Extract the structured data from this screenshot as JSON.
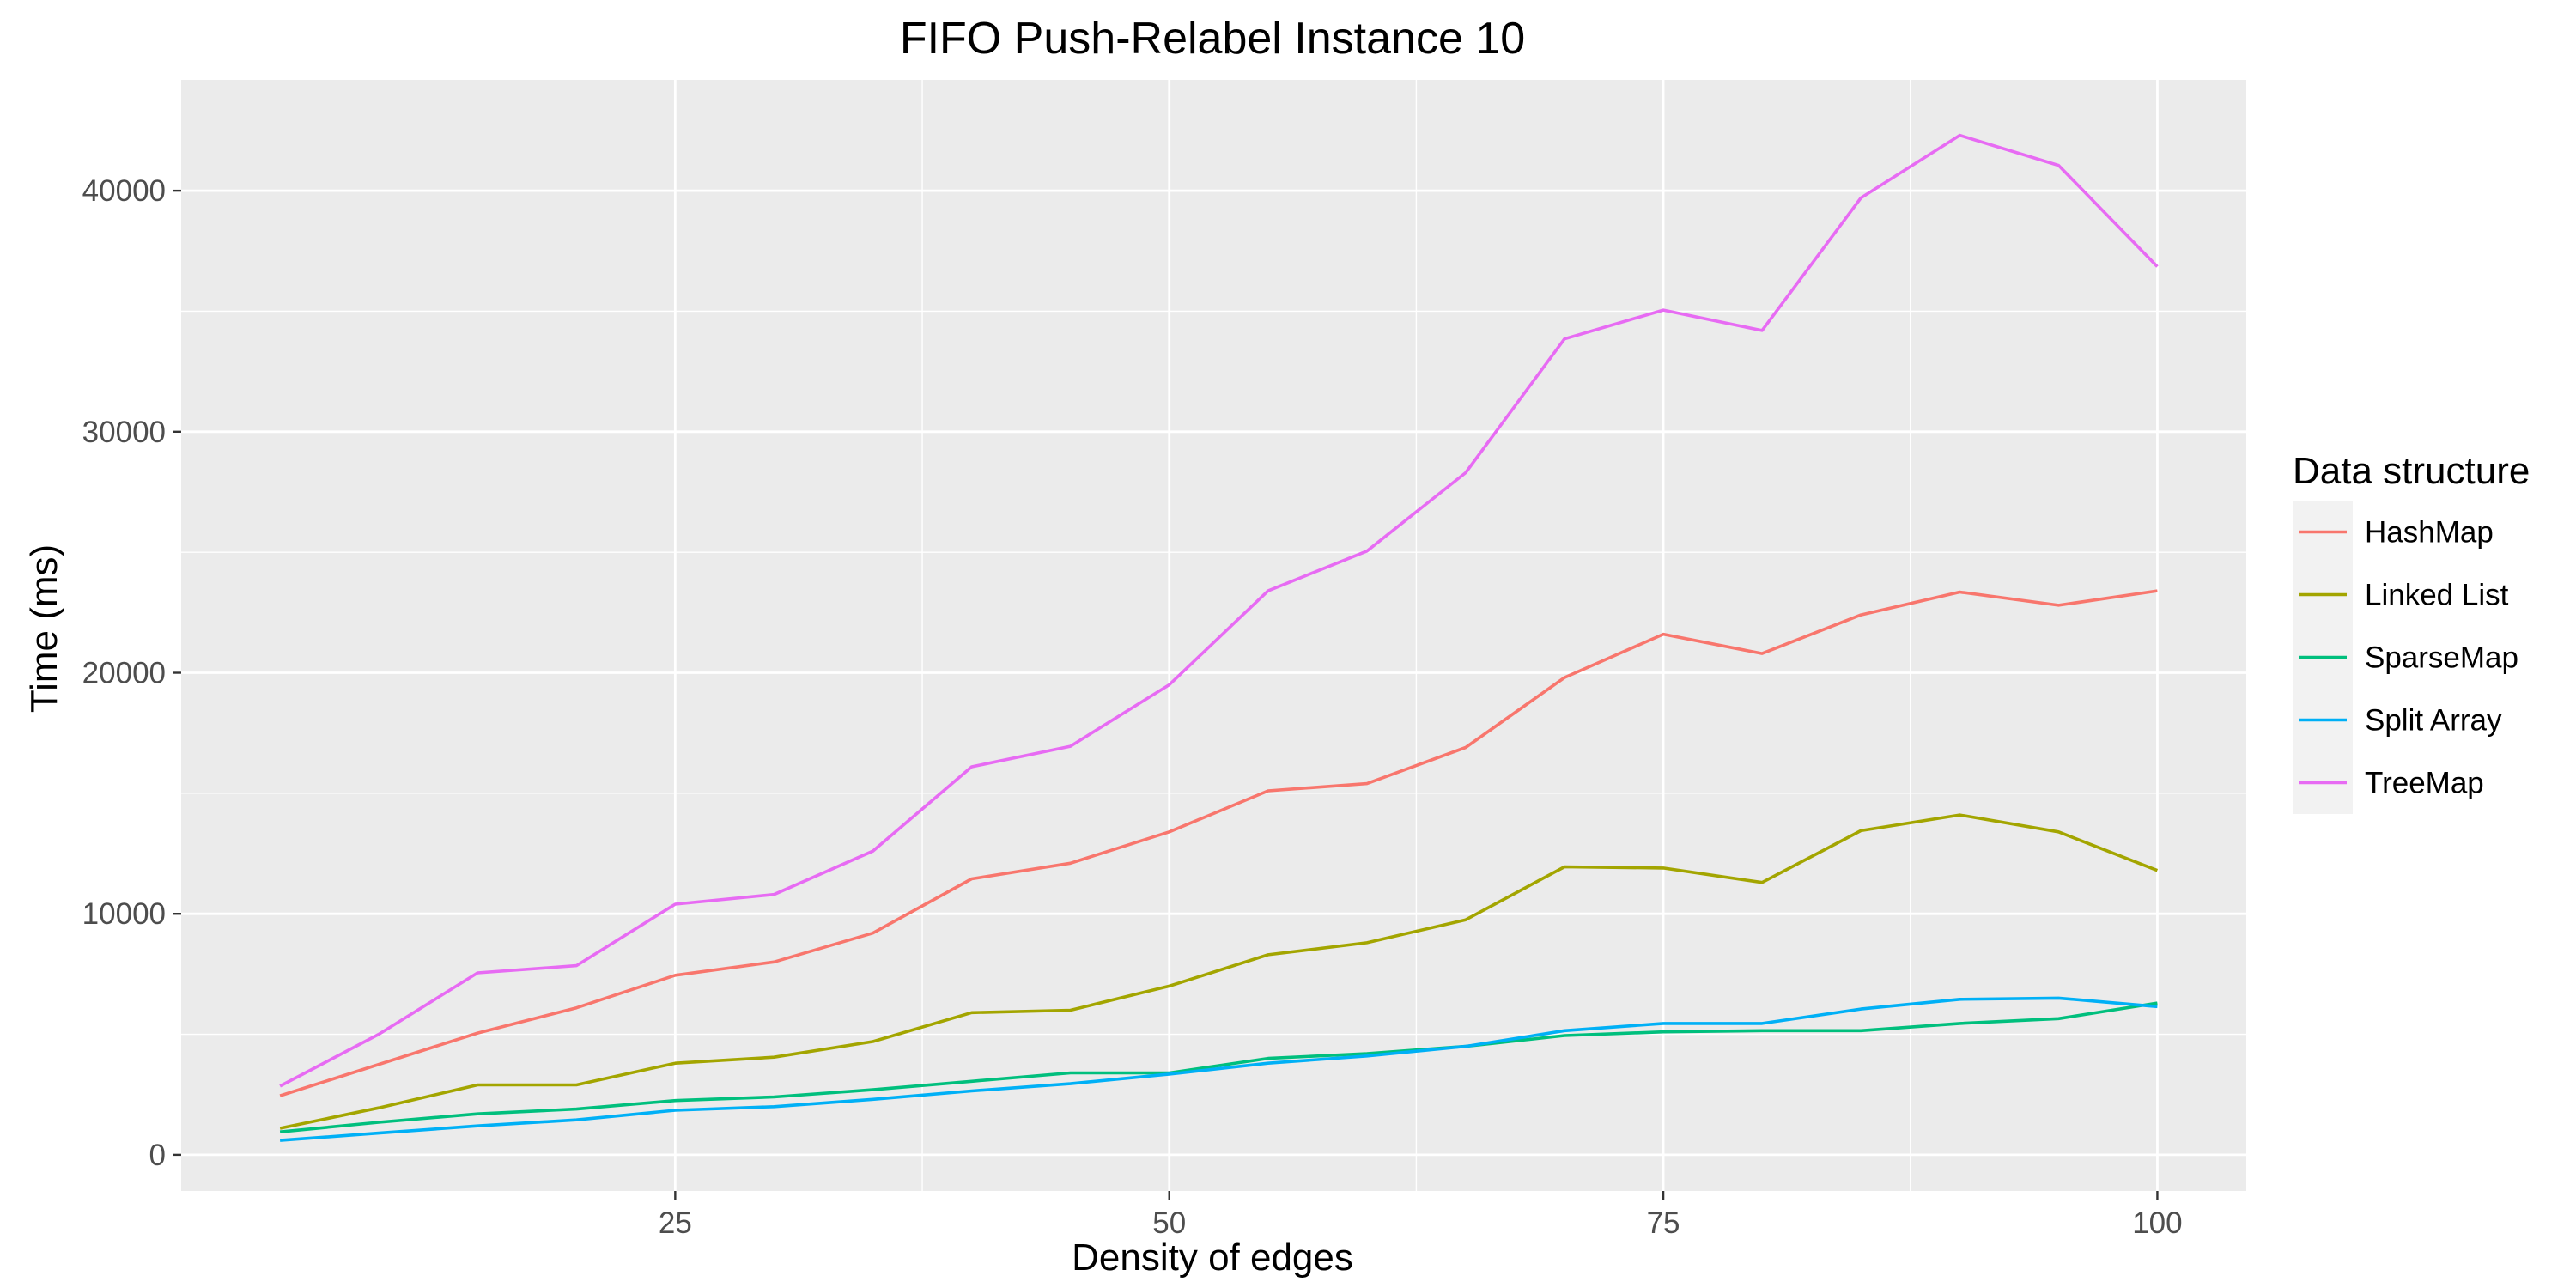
{
  "chart_data": {
    "type": "line",
    "title": "FIFO Push-Relabel Instance 10",
    "xlabel": "Density of edges",
    "ylabel": "Time (ms)",
    "xlim": [
      0,
      104.5
    ],
    "ylim": [
      -1500,
      44600
    ],
    "x_ticks": [
      25,
      50,
      75,
      100
    ],
    "x_tick_labels": [
      "25",
      "50",
      "75",
      "100"
    ],
    "y_ticks": [
      0,
      10000,
      20000,
      30000,
      40000
    ],
    "y_tick_labels": [
      "0",
      "10000",
      "20000",
      "30000",
      "40000"
    ],
    "grid": true,
    "background": "#ebebeb",
    "legend": {
      "title": "Data structure",
      "position": "right"
    },
    "x": [
      5,
      10,
      15,
      20,
      25,
      30,
      35,
      40,
      45,
      50,
      55,
      60,
      65,
      70,
      75,
      80,
      85,
      90,
      95,
      100
    ],
    "series": [
      {
        "name": "HashMap",
        "color": "#f8766d",
        "values": [
          2450,
          3750,
          5050,
          6100,
          7450,
          8000,
          9200,
          11450,
          12100,
          13400,
          15100,
          15400,
          16900,
          19800,
          21600,
          20800,
          22400,
          23350,
          22800,
          23400
        ]
      },
      {
        "name": "Linked List",
        "color": "#a3a500",
        "values": [
          1100,
          1950,
          2900,
          2900,
          3800,
          4050,
          4700,
          5900,
          6000,
          7000,
          8300,
          8800,
          9750,
          11950,
          11900,
          11300,
          13450,
          14100,
          13400,
          11800
        ]
      },
      {
        "name": "SparseMap",
        "color": "#00bf7d",
        "values": [
          950,
          1350,
          1700,
          1900,
          2250,
          2400,
          2700,
          3050,
          3400,
          3400,
          4000,
          4200,
          4500,
          4950,
          5100,
          5150,
          5150,
          5450,
          5650,
          6300
        ]
      },
      {
        "name": "Split Array",
        "color": "#00b0f6",
        "values": [
          600,
          900,
          1200,
          1450,
          1850,
          2000,
          2300,
          2650,
          2950,
          3350,
          3800,
          4100,
          4500,
          5150,
          5450,
          5450,
          6050,
          6450,
          6500,
          6150
        ]
      },
      {
        "name": "TreeMap",
        "color": "#e76bf3",
        "values": [
          2850,
          5000,
          7550,
          7850,
          10400,
          10800,
          12600,
          16100,
          16950,
          19500,
          23400,
          25050,
          28300,
          33850,
          35050,
          34200,
          39700,
          42300,
          41050,
          36850
        ]
      }
    ]
  }
}
